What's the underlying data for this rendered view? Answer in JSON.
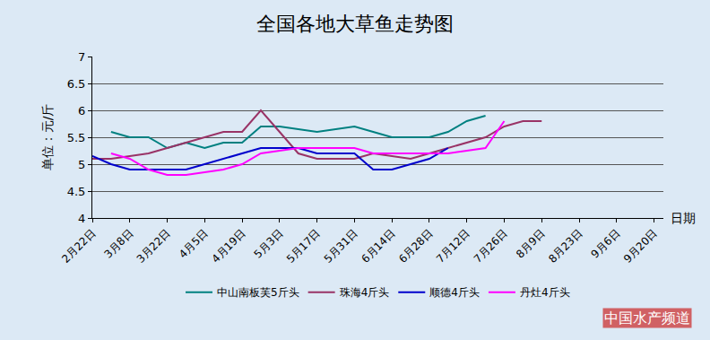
{
  "chart_data": {
    "type": "line",
    "title": "全国各地大草鱼走势图",
    "y_label": "单位：元/斤",
    "x_label": "日期",
    "categories": [
      "2月22日",
      null,
      "3月8日",
      null,
      "3月22日",
      null,
      "4月5日",
      null,
      "4月19日",
      null,
      "5月3日",
      null,
      "5月17日",
      null,
      "5月31日",
      null,
      "6月14日",
      null,
      "6月28日",
      null,
      "7月12日",
      null,
      "7月26日",
      null,
      "8月9日",
      null,
      "8月23日",
      null,
      "9月6日",
      null,
      "9月20日"
    ],
    "series": [
      {
        "name": "中山南板芙5斤头",
        "color": "#008080",
        "values": [
          null,
          5.6,
          5.5,
          5.5,
          5.3,
          5.4,
          5.3,
          5.4,
          5.4,
          5.7,
          5.7,
          5.65,
          5.6,
          5.65,
          5.7,
          5.6,
          5.5,
          5.5,
          5.5,
          5.6,
          5.8,
          5.9,
          null,
          null,
          null,
          null,
          null,
          null,
          null,
          null,
          null
        ]
      },
      {
        "name": "珠海4斤头",
        "color": "#993366",
        "values": [
          5.1,
          5.1,
          5.15,
          5.2,
          5.3,
          5.4,
          5.5,
          5.6,
          5.6,
          6.0,
          5.6,
          5.2,
          5.1,
          5.1,
          5.1,
          5.2,
          5.15,
          5.1,
          5.2,
          5.3,
          5.4,
          5.5,
          5.7,
          5.8,
          5.8,
          null,
          null,
          null,
          null,
          null,
          null
        ]
      },
      {
        "name": "顺德4斤头",
        "color": "#0000cc",
        "values": [
          5.15,
          5.0,
          4.9,
          4.9,
          4.9,
          4.9,
          5.0,
          5.1,
          5.2,
          5.3,
          5.3,
          5.3,
          5.2,
          5.2,
          5.2,
          4.9,
          4.9,
          5.0,
          5.1,
          5.3,
          null,
          null,
          null,
          null,
          null,
          null,
          null,
          null,
          null,
          null,
          null
        ]
      },
      {
        "name": "丹灶4斤头",
        "color": "#ff00ff",
        "values": [
          null,
          5.2,
          5.1,
          4.9,
          4.8,
          4.8,
          4.85,
          4.9,
          5.0,
          5.2,
          5.25,
          5.3,
          5.3,
          5.3,
          5.3,
          5.2,
          5.2,
          5.2,
          5.2,
          5.2,
          5.25,
          5.3,
          5.8,
          null,
          null,
          null,
          null,
          null,
          null,
          null,
          null
        ]
      }
    ],
    "ylim": [
      4,
      7
    ],
    "yticks": [
      4,
      4.5,
      5,
      5.5,
      6,
      6.5,
      7
    ],
    "grid": true,
    "legend": "bottom",
    "annotations": [
      {
        "text": "中国水产频道"
      }
    ]
  }
}
